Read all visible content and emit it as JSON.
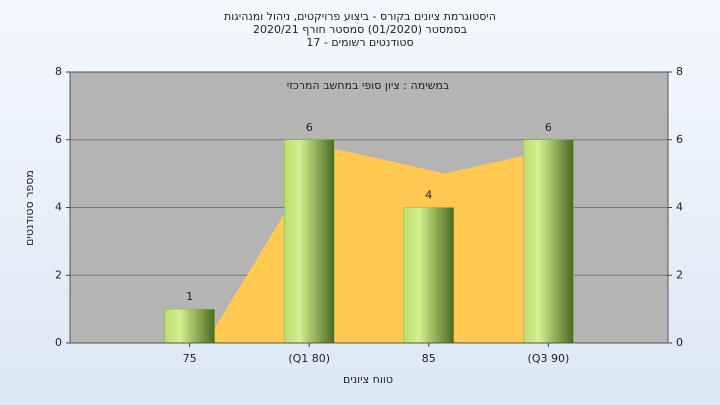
{
  "chart_data": {
    "type": "bar",
    "title": [
      "היסטוגרמת ציונים בקורס - ביצוע פרויקטים, ניהול ומנהיגות",
      "בסמסטר  (01/2020)  סמסטר חורף  2020/21",
      "סטודנטים רשומים - 17"
    ],
    "subtitle": "במשימה : ציון סופי במחשב המרכזי",
    "xlabel": "טווח ציונים",
    "ylabel": "מספר סטודנטים",
    "categories": [
      "75",
      "(Q1 80)",
      "85",
      "(Q3 90)"
    ],
    "series": [
      {
        "type": "area",
        "color": "#ffc850",
        "values": [
          0,
          5.8,
          5,
          5.8
        ]
      },
      {
        "type": "bar",
        "color": "#8cb440",
        "values": [
          1,
          6,
          4,
          6
        ]
      }
    ],
    "ylim": [
      0,
      8
    ],
    "yticks": [
      0,
      2,
      4,
      6,
      8
    ],
    "grid": true
  }
}
